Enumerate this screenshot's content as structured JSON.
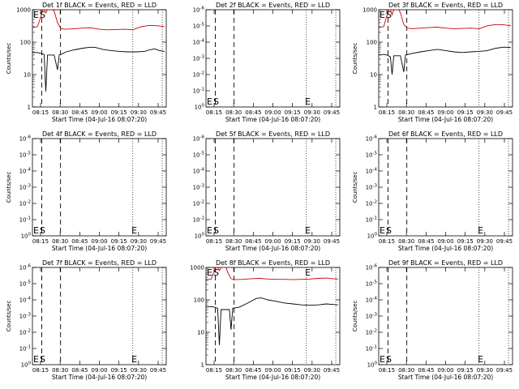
{
  "chart_data": [
    {
      "type": "line",
      "title": "Det 1f BLACK = Events, RED = LLD",
      "xlabel": "Start Time (04-Jul-16 08:07:20)",
      "ylabel": "Counts/sec",
      "yscale": "log",
      "ylim": [
        1,
        1000
      ],
      "ytick_labels": [
        "1",
        "10",
        "100",
        "1000"
      ],
      "xtick_labels": [
        "08:15",
        "08:30",
        "08:45",
        "09:00",
        "09:15",
        "09:30",
        "09:45"
      ],
      "markers": [
        {
          "label": "E",
          "x": "08:07:20"
        },
        {
          "label": "S",
          "x": "08:12:00"
        }
      ],
      "has_data": true,
      "series": [
        {
          "name": "Events",
          "color": "#000000",
          "points": [
            [
              0,
              48
            ],
            [
              3,
              48
            ],
            [
              5,
              45
            ],
            [
              7,
              42
            ],
            [
              8,
              3
            ],
            [
              9,
              40
            ],
            [
              13,
              40
            ],
            [
              15,
              14
            ],
            [
              16,
              40
            ],
            [
              18,
              44
            ],
            [
              20,
              50
            ],
            [
              25,
              58
            ],
            [
              30,
              65
            ],
            [
              35,
              70
            ],
            [
              38,
              68
            ],
            [
              42,
              60
            ],
            [
              47,
              55
            ],
            [
              52,
              52
            ],
            [
              57,
              50
            ],
            [
              62,
              50
            ],
            [
              67,
              52
            ],
            [
              70,
              58
            ],
            [
              73,
              62
            ],
            [
              76,
              55
            ],
            [
              79,
              52
            ]
          ]
        },
        {
          "name": "LLD",
          "color": "#cc0000",
          "points": [
            [
              0,
              280
            ],
            [
              3,
              300
            ],
            [
              5,
              600
            ],
            [
              6,
              1000
            ],
            [
              7,
              1000
            ],
            [
              8,
              800
            ],
            [
              9,
              1000
            ],
            [
              12,
              1000
            ],
            [
              13,
              900
            ],
            [
              15,
              400
            ],
            [
              17,
              260
            ],
            [
              20,
              250
            ],
            [
              25,
              260
            ],
            [
              30,
              270
            ],
            [
              35,
              275
            ],
            [
              40,
              250
            ],
            [
              45,
              240
            ],
            [
              50,
              245
            ],
            [
              55,
              250
            ],
            [
              60,
              240
            ],
            [
              65,
              300
            ],
            [
              70,
              330
            ],
            [
              75,
              320
            ],
            [
              79,
              300
            ]
          ]
        }
      ]
    },
    {
      "type": "line",
      "title": "Det 2f BLACK = Events, RED = LLD",
      "xlabel": "Start Time (04-Jul-16 08:07:20)",
      "ylabel": "",
      "yscale": "log",
      "ylim": [
        1,
        1e-06
      ],
      "ytick_labels": [
        "10^0",
        "10^-1",
        "10^-2",
        "10^-3",
        "10^-4",
        "10^-5",
        "10^-6"
      ],
      "xtick_labels": [
        "08:15",
        "08:30",
        "08:45",
        "09:00",
        "09:15",
        "09:30",
        "09:45"
      ],
      "markers": [
        {
          "label": "E",
          "x": "08:07:20"
        },
        {
          "label": "S",
          "x": "08:12:00"
        },
        {
          "label": "E",
          "x": "09:25:00"
        }
      ],
      "has_data": false,
      "series": []
    },
    {
      "type": "line",
      "title": "Det 3f BLACK = Events, RED = LLD",
      "xlabel": "Start Time (04-Jul-16 08:07:20)",
      "ylabel": "Counts/sec",
      "yscale": "log",
      "ylim": [
        1,
        1000
      ],
      "ytick_labels": [
        "1",
        "10",
        "100",
        "1000"
      ],
      "xtick_labels": [
        "08:15",
        "08:30",
        "08:45",
        "09:00",
        "09:15",
        "09:30",
        "09:45"
      ],
      "markers": [
        {
          "label": "E",
          "x": "08:07:20"
        },
        {
          "label": "S",
          "x": "08:12:00"
        }
      ],
      "has_data": true,
      "series": [
        {
          "name": "Events",
          "color": "#000000",
          "points": [
            [
              0,
              40
            ],
            [
              3,
              42
            ],
            [
              5,
              40
            ],
            [
              7,
              35
            ],
            [
              8,
              10
            ],
            [
              9,
              38
            ],
            [
              13,
              38
            ],
            [
              15,
              12
            ],
            [
              16,
              40
            ],
            [
              20,
              45
            ],
            [
              25,
              50
            ],
            [
              30,
              55
            ],
            [
              35,
              60
            ],
            [
              40,
              55
            ],
            [
              45,
              50
            ],
            [
              50,
              48
            ],
            [
              55,
              50
            ],
            [
              60,
              52
            ],
            [
              65,
              55
            ],
            [
              70,
              65
            ],
            [
              75,
              70
            ],
            [
              79,
              68
            ]
          ]
        },
        {
          "name": "LLD",
          "color": "#cc0000",
          "points": [
            [
              0,
              280
            ],
            [
              3,
              300
            ],
            [
              5,
              700
            ],
            [
              6,
              1000
            ],
            [
              7,
              1000
            ],
            [
              8,
              700
            ],
            [
              9,
              1000
            ],
            [
              12,
              1000
            ],
            [
              13,
              800
            ],
            [
              15,
              350
            ],
            [
              17,
              270
            ],
            [
              20,
              260
            ],
            [
              25,
              270
            ],
            [
              30,
              280
            ],
            [
              35,
              290
            ],
            [
              40,
              270
            ],
            [
              45,
              260
            ],
            [
              50,
              265
            ],
            [
              55,
              270
            ],
            [
              60,
              260
            ],
            [
              65,
              320
            ],
            [
              70,
              350
            ],
            [
              75,
              340
            ],
            [
              79,
              320
            ]
          ]
        }
      ]
    },
    {
      "type": "line",
      "title": "Det 4f BLACK = Events, RED = LLD",
      "xlabel": "Start Time (04-Jul-16 08:07:20)",
      "ylabel": "Counts/sec",
      "yscale": "log",
      "ylim": [
        1,
        1e-06
      ],
      "ytick_labels": [
        "10^0",
        "10^-1",
        "10^-2",
        "10^-3",
        "10^-4",
        "10^-5",
        "10^-6"
      ],
      "xtick_labels": [
        "08:15",
        "08:30",
        "08:45",
        "09:00",
        "09:15",
        "09:30",
        "09:45"
      ],
      "markers": [
        {
          "label": "E",
          "x": "08:07:20"
        },
        {
          "label": "S",
          "x": "08:12:00"
        },
        {
          "label": "E",
          "x": "09:25:00"
        }
      ],
      "has_data": false,
      "series": []
    },
    {
      "type": "line",
      "title": "Det 5f BLACK = Events, RED = LLD",
      "xlabel": "Start Time (04-Jul-16 08:07:20)",
      "ylabel": "",
      "yscale": "log",
      "ylim": [
        1,
        1e-06
      ],
      "ytick_labels": [
        "10^0",
        "10^-1",
        "10^-2",
        "10^-3",
        "10^-4",
        "10^-5",
        "10^-6"
      ],
      "xtick_labels": [
        "08:15",
        "08:30",
        "08:45",
        "09:00",
        "09:15",
        "09:30",
        "09:45"
      ],
      "markers": [
        {
          "label": "E",
          "x": "08:07:20"
        },
        {
          "label": "S",
          "x": "08:12:00"
        },
        {
          "label": "E",
          "x": "09:25:00"
        }
      ],
      "has_data": false,
      "series": []
    },
    {
      "type": "line",
      "title": "Det 6f BLACK = Events, RED = LLD",
      "xlabel": "Start Time (04-Jul-16 08:07:20)",
      "ylabel": "Counts/sec",
      "yscale": "log",
      "ylim": [
        1,
        1e-06
      ],
      "ytick_labels": [
        "10^0",
        "10^-1",
        "10^-2",
        "10^-3",
        "10^-4",
        "10^-5",
        "10^-6"
      ],
      "xtick_labels": [
        "08:15",
        "08:30",
        "08:45",
        "09:00",
        "09:15",
        "09:30",
        "09:45"
      ],
      "markers": [
        {
          "label": "E",
          "x": "08:07:20"
        },
        {
          "label": "S",
          "x": "08:12:00"
        },
        {
          "label": "E",
          "x": "09:25:00"
        }
      ],
      "has_data": false,
      "series": []
    },
    {
      "type": "line",
      "title": "Det 7f BLACK = Events, RED = LLD",
      "xlabel": "Start Time (04-Jul-16 08:07:20)",
      "ylabel": "Counts/sec",
      "yscale": "log",
      "ylim": [
        1,
        1e-06
      ],
      "ytick_labels": [
        "10^0",
        "10^-1",
        "10^-2",
        "10^-3",
        "10^-4",
        "10^-5",
        "10^-6"
      ],
      "xtick_labels": [
        "08:15",
        "08:30",
        "08:45",
        "09:00",
        "09:15",
        "09:30",
        "09:45"
      ],
      "markers": [
        {
          "label": "E",
          "x": "08:07:20"
        },
        {
          "label": "S",
          "x": "08:12:00"
        },
        {
          "label": "E",
          "x": "09:25:00"
        }
      ],
      "has_data": false,
      "series": []
    },
    {
      "type": "line",
      "title": "Det 8f BLACK = Events, RED = LLD",
      "xlabel": "Start Time (04-Jul-16 08:07:20)",
      "ylabel": "",
      "yscale": "log",
      "ylim": [
        1,
        1000
      ],
      "ytick_labels": [
        "1",
        "10",
        "100",
        "1000"
      ],
      "xtick_labels": [
        "08:15",
        "08:30",
        "08:45",
        "09:00",
        "09:15",
        "09:30",
        "09:45"
      ],
      "markers": [
        {
          "label": "E",
          "x": "08:07:20"
        },
        {
          "label": "S",
          "x": "08:12:00"
        },
        {
          "label": "E",
          "x": "09:25:00"
        }
      ],
      "has_data": true,
      "series": [
        {
          "name": "Events",
          "color": "#000000",
          "points": [
            [
              0,
              60
            ],
            [
              3,
              62
            ],
            [
              5,
              60
            ],
            [
              7,
              55
            ],
            [
              8,
              4
            ],
            [
              9,
              50
            ],
            [
              14,
              50
            ],
            [
              15,
              12
            ],
            [
              16,
              55
            ],
            [
              20,
              60
            ],
            [
              25,
              80
            ],
            [
              30,
              110
            ],
            [
              33,
              115
            ],
            [
              37,
              100
            ],
            [
              42,
              90
            ],
            [
              47,
              80
            ],
            [
              52,
              75
            ],
            [
              57,
              70
            ],
            [
              62,
              68
            ],
            [
              67,
              70
            ],
            [
              72,
              75
            ],
            [
              76,
              72
            ],
            [
              79,
              70
            ]
          ]
        },
        {
          "name": "LLD",
          "color": "#cc0000",
          "points": [
            [
              0,
              420
            ],
            [
              3,
              430
            ],
            [
              5,
              800
            ],
            [
              6,
              1000
            ],
            [
              7,
              1000
            ],
            [
              8,
              800
            ],
            [
              9,
              1000
            ],
            [
              12,
              1000
            ],
            [
              13,
              700
            ],
            [
              15,
              450
            ],
            [
              18,
              420
            ],
            [
              22,
              430
            ],
            [
              27,
              450
            ],
            [
              32,
              460
            ],
            [
              37,
              440
            ],
            [
              42,
              430
            ],
            [
              47,
              430
            ],
            [
              52,
              420
            ],
            [
              57,
              430
            ],
            [
              62,
              440
            ],
            [
              67,
              460
            ],
            [
              72,
              470
            ],
            [
              76,
              450
            ],
            [
              79,
              440
            ]
          ]
        }
      ]
    },
    {
      "type": "line",
      "title": "Det 9f BLACK = Events, RED = LLD",
      "xlabel": "Start Time (04-Jul-16 08:07:20)",
      "ylabel": "Counts/sec",
      "yscale": "log",
      "ylim": [
        1,
        1e-06
      ],
      "ytick_labels": [
        "10^0",
        "10^-1",
        "10^-2",
        "10^-3",
        "10^-4",
        "10^-5",
        "10^-6"
      ],
      "xtick_labels": [
        "08:15",
        "08:30",
        "08:45",
        "09:00",
        "09:15",
        "09:30",
        "09:45"
      ],
      "markers": [
        {
          "label": "E",
          "x": "08:07:20"
        },
        {
          "label": "S",
          "x": "08:12:00"
        },
        {
          "label": "E",
          "x": "09:25:00"
        }
      ],
      "has_data": false,
      "series": []
    }
  ]
}
